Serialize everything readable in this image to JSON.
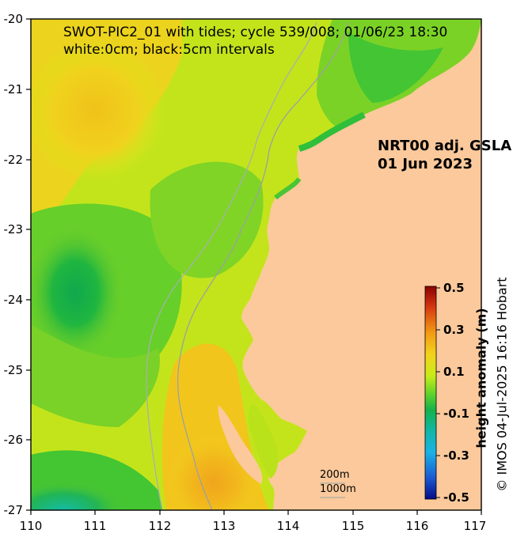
{
  "map": {
    "title_line_1": "SWOT-PIC2_01 with tides; cycle 539/008; 01/06/23 18:30",
    "title_line_2": "white:0cm; black:5cm intervals",
    "product_line_1": "NRT00 adj. GSLA",
    "product_line_2": "01 Jun 2023",
    "contour_label_200": "200m",
    "contour_label_1000": "1000m",
    "x_ticks": [
      "110",
      "111",
      "112",
      "113",
      "114",
      "115",
      "116",
      "117"
    ],
    "y_ticks": [
      "-20",
      "-21",
      "-22",
      "-23",
      "-24",
      "-25",
      "-26",
      "-27"
    ],
    "land_color": "#fbc99b"
  },
  "colorbar": {
    "title": "height anomaly (m)",
    "tick_labels": [
      "0.5",
      "0.3",
      "0.1",
      "-0.1",
      "-0.3",
      "-0.5"
    ],
    "colors": [
      "#8b0000",
      "#d83a10",
      "#f29b14",
      "#f4d21c",
      "#c9ec18",
      "#66d52a",
      "#14b24a",
      "#12b6a7",
      "#1bb2e5",
      "#1a59d1",
      "#070b85"
    ]
  },
  "credit": "© IMOS 04-Jul-2025 16:16 Hobart"
}
